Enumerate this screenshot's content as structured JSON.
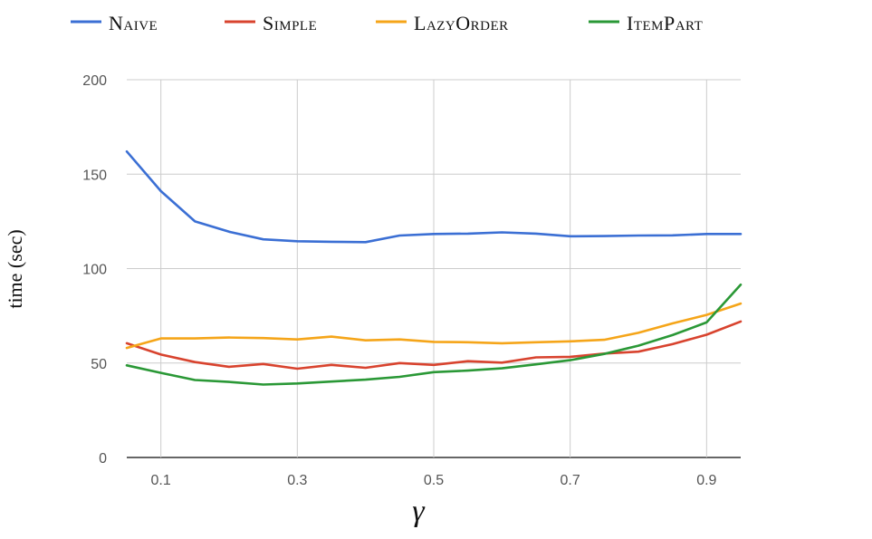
{
  "chart_data": {
    "type": "line",
    "xlabel": "γ",
    "ylabel": "time (sec)",
    "xlim": [
      0.05,
      0.95
    ],
    "ylim": [
      0,
      200
    ],
    "xticks": [
      0.1,
      0.3,
      0.5,
      0.7,
      0.9
    ],
    "xtick_labels": [
      "0.1",
      "0.3",
      "0.5",
      "0.7",
      "0.9"
    ],
    "yticks": [
      0,
      50,
      100,
      150,
      200
    ],
    "ytick_labels": [
      "0",
      "50",
      "100",
      "150",
      "200"
    ],
    "grid": true,
    "legend_position": "top",
    "x": [
      0.05,
      0.1,
      0.15,
      0.2,
      0.25,
      0.3,
      0.35,
      0.4,
      0.45,
      0.5,
      0.55,
      0.6,
      0.65,
      0.7,
      0.75,
      0.8,
      0.85,
      0.9,
      0.95
    ],
    "series": [
      {
        "name": "Naive",
        "color": "#3b6fd4",
        "values": [
          162,
          141,
          125,
          119.5,
          115.5,
          114.5,
          114.2,
          114,
          117.5,
          118.3,
          118.5,
          119.2,
          118.5,
          117.1,
          117.2,
          117.5,
          117.6,
          118.3,
          118.3
        ]
      },
      {
        "name": "Simple",
        "color": "#d8432e",
        "values": [
          60.5,
          54.5,
          50.5,
          48,
          49.5,
          47,
          49,
          47.5,
          50,
          49,
          51,
          50.2,
          53,
          53.3,
          55,
          56,
          60,
          65,
          72
        ]
      },
      {
        "name": "LazyOrder",
        "color": "#f5a519",
        "values": [
          58,
          63,
          63,
          63.5,
          63.2,
          62.5,
          64,
          62,
          62.5,
          61.2,
          61,
          60.5,
          61,
          61.5,
          62.3,
          66,
          71,
          75.5,
          81.5
        ]
      },
      {
        "name": "ItemPart",
        "color": "#2a9836",
        "values": [
          48.8,
          44.8,
          41,
          40,
          38.6,
          39.2,
          40.2,
          41.2,
          42.7,
          45.2,
          46,
          47.2,
          49.3,
          51.5,
          54.8,
          59.2,
          64.8,
          71.5,
          91.5
        ]
      }
    ]
  }
}
